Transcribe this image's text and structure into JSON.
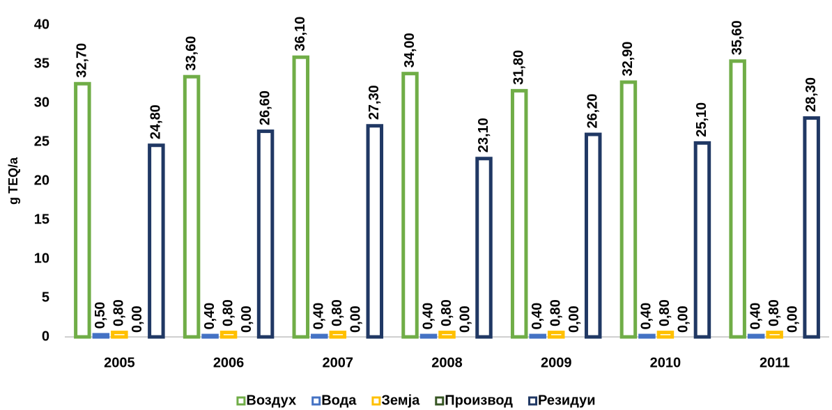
{
  "chart_data": {
    "type": "bar",
    "y_label": "g TEQ/a",
    "categories": [
      "2005",
      "2006",
      "2007",
      "2008",
      "2009",
      "2010",
      "2011"
    ],
    "series": [
      {
        "name": "Воздух",
        "color": "#70ad47",
        "values": [
          32.7,
          33.6,
          36.1,
          34.0,
          31.8,
          32.9,
          35.6
        ],
        "value_labels": [
          "32,70",
          "33,60",
          "36,10",
          "34,00",
          "31,80",
          "32,90",
          "35,60"
        ]
      },
      {
        "name": "Вода",
        "color": "#4472c4",
        "values": [
          0.5,
          0.4,
          0.4,
          0.4,
          0.4,
          0.4,
          0.4
        ],
        "value_labels": [
          "0,50",
          "0,40",
          "0,40",
          "0,40",
          "0,40",
          "0,40",
          "0,40"
        ]
      },
      {
        "name": "Земја",
        "color": "#ffc000",
        "values": [
          0.8,
          0.8,
          0.8,
          0.8,
          0.8,
          0.8,
          0.8
        ],
        "value_labels": [
          "0,80",
          "0,80",
          "0,80",
          "0,80",
          "0,80",
          "0,80",
          "0,80"
        ]
      },
      {
        "name": "Производ",
        "color": "#375623",
        "values": [
          0,
          0,
          0,
          0,
          0,
          0,
          0
        ],
        "value_labels": [
          "0,00",
          "0,00",
          "0,00",
          "0,00",
          "0,00",
          "0,00",
          "0,00"
        ]
      },
      {
        "name": "Резидуи",
        "color": "#203864",
        "values": [
          24.8,
          26.6,
          27.3,
          23.1,
          26.2,
          25.1,
          28.3
        ],
        "value_labels": [
          "24,80",
          "26,60",
          "27,30",
          "23,10",
          "26,20",
          "25,10",
          "28,30"
        ]
      }
    ],
    "ylim": [
      0,
      40
    ],
    "yticks": [
      0,
      5,
      10,
      15,
      20,
      25,
      30,
      35,
      40
    ],
    "grid": false,
    "legend": "bottom"
  }
}
